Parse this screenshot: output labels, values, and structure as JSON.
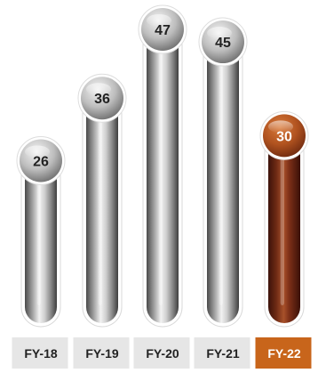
{
  "chart_data": {
    "type": "bar",
    "title": "",
    "xlabel": "",
    "ylabel": "",
    "categories": [
      "FY-18",
      "FY-19",
      "FY-20",
      "FY-21",
      "FY-22"
    ],
    "values": [
      26,
      36,
      47,
      45,
      30
    ],
    "ylim": [
      0,
      47
    ],
    "highlight_category": "FY-22",
    "grid": false,
    "legend": "none"
  },
  "colors": {
    "bar_metal_dark": "#5f5f5f",
    "bar_metal_light": "#e6e6e6",
    "bar_highlight_dark": "#5a1c10",
    "bar_highlight_mid": "#8b3a1c",
    "bubble_highlight": "#b25522",
    "label_band": "#e6e6e6",
    "label_highlight": "#c8651b",
    "text_dark": "#222222",
    "text_light": "#ffffff"
  }
}
